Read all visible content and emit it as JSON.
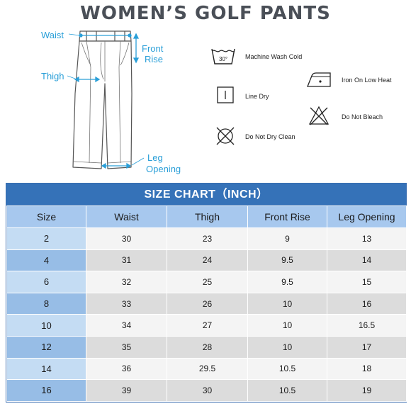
{
  "title": "WOMEN’S GOLF PANTS",
  "diagram": {
    "waist": "Waist",
    "thigh": "Thigh",
    "front_rise_1": "Front",
    "front_rise_2": "Rise",
    "leg_opening_1": "Leg",
    "leg_opening_2": "Opening"
  },
  "care": {
    "wash_temp": "30°",
    "machine_wash": "Machine Wash Cold",
    "line_dry": "Line Dry",
    "do_not_dry_clean": "Do Not Dry Clean",
    "iron": "Iron On Low Heat",
    "do_not_bleach": "Do Not Bleach"
  },
  "colors": {
    "accent": "#2a9fd8",
    "title_bar": "#3572b8",
    "header": "#a7c8ee"
  },
  "size_chart": {
    "title": "SIZE CHART（INCH）",
    "headers": [
      "Size",
      "Waist",
      "Thigh",
      "Front Rise",
      "Leg Opening"
    ],
    "rows": [
      [
        "2",
        "30",
        "23",
        "9",
        "13"
      ],
      [
        "4",
        "31",
        "24",
        "9.5",
        "14"
      ],
      [
        "6",
        "32",
        "25",
        "9.5",
        "15"
      ],
      [
        "8",
        "33",
        "26",
        "10",
        "16"
      ],
      [
        "10",
        "34",
        "27",
        "10",
        "16.5"
      ],
      [
        "12",
        "35",
        "28",
        "10",
        "17"
      ],
      [
        "14",
        "36",
        "29.5",
        "10.5",
        "18"
      ],
      [
        "16",
        "39",
        "30",
        "10.5",
        "19"
      ]
    ]
  }
}
